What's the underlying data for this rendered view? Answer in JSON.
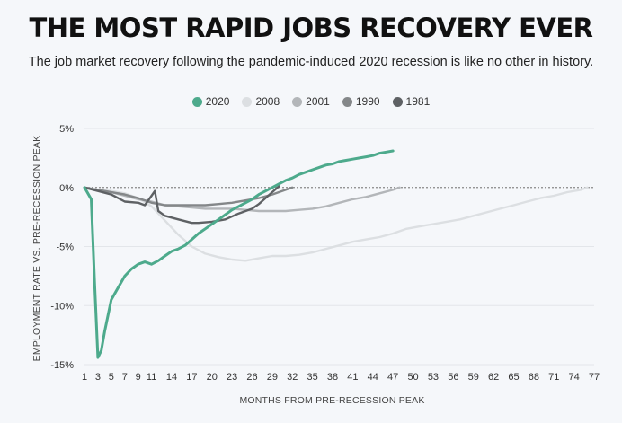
{
  "header": {
    "title": "THE MOST RAPID JOBS RECOVERY EVER",
    "subtitle": "The job market recovery following the pandemic-induced 2020 recession is like no other in history."
  },
  "chart_data": {
    "type": "line",
    "title": "THE MOST RAPID JOBS RECOVERY EVER",
    "subtitle": "The job market recovery following the pandemic-induced 2020 recession is like no other in history.",
    "xlabel": "MONTHS FROM PRE-RECESSION PEAK",
    "ylabel": "EMPLOYMENT RATE VS. PRE-RECESSION PEAK",
    "xlim": [
      1,
      77
    ],
    "ylim": [
      -15,
      5
    ],
    "x_ticks": [
      1,
      3,
      5,
      7,
      9,
      11,
      14,
      17,
      20,
      23,
      26,
      29,
      32,
      35,
      38,
      41,
      44,
      47,
      50,
      53,
      56,
      59,
      62,
      65,
      68,
      71,
      74,
      77
    ],
    "y_ticks": [
      5,
      0,
      -5,
      -10,
      -15
    ],
    "y_tick_labels": [
      "5%",
      "0%",
      "-5%",
      "-10%",
      "-15%"
    ],
    "legend_position": "top-center",
    "series": [
      {
        "name": "2020",
        "color": "#4daa8c",
        "x": [
          1,
          2,
          2.5,
          3,
          3.5,
          4,
          5,
          6,
          7,
          8,
          9,
          10,
          11,
          12,
          13,
          14,
          15,
          16,
          17,
          18,
          19,
          20,
          21,
          22,
          23,
          24,
          25,
          26,
          27,
          28,
          29,
          30,
          31,
          32,
          33,
          34,
          35,
          36,
          37,
          38,
          39,
          40,
          41,
          42,
          43,
          44,
          45,
          46,
          47
        ],
        "values": [
          0,
          -1,
          -8,
          -14.4,
          -13.8,
          -12.2,
          -9.5,
          -8.5,
          -7.5,
          -6.9,
          -6.5,
          -6.3,
          -6.5,
          -6.2,
          -5.8,
          -5.4,
          -5.2,
          -4.9,
          -4.4,
          -3.9,
          -3.5,
          -3.1,
          -2.7,
          -2.3,
          -1.9,
          -1.6,
          -1.3,
          -1.0,
          -0.6,
          -0.3,
          0,
          0.3,
          0.6,
          0.8,
          1.1,
          1.3,
          1.5,
          1.7,
          1.9,
          2.0,
          2.2,
          2.3,
          2.4,
          2.5,
          2.6,
          2.7,
          2.9,
          3.0,
          3.1
        ]
      },
      {
        "name": "2008",
        "color": "#dcdfe2",
        "x": [
          1,
          3,
          5,
          7,
          9,
          11,
          13,
          15,
          17,
          19,
          21,
          23,
          25,
          27,
          29,
          31,
          33,
          35,
          37,
          39,
          41,
          43,
          45,
          47,
          49,
          51,
          53,
          55,
          57,
          59,
          61,
          63,
          65,
          67,
          69,
          71,
          73,
          75,
          76
        ],
        "values": [
          0,
          -0.2,
          -0.3,
          -0.5,
          -0.9,
          -1.6,
          -2.8,
          -4.0,
          -5.0,
          -5.6,
          -5.9,
          -6.1,
          -6.2,
          -6.0,
          -5.8,
          -5.8,
          -5.7,
          -5.5,
          -5.2,
          -4.9,
          -4.6,
          -4.4,
          -4.2,
          -3.9,
          -3.5,
          -3.3,
          -3.1,
          -2.9,
          -2.7,
          -2.4,
          -2.1,
          -1.8,
          -1.5,
          -1.2,
          -0.9,
          -0.7,
          -0.4,
          -0.2,
          0
        ]
      },
      {
        "name": "2001",
        "color": "#b3b6b9",
        "x": [
          1,
          3,
          5,
          7,
          9,
          11,
          13,
          15,
          17,
          19,
          21,
          23,
          25,
          27,
          29,
          31,
          33,
          35,
          37,
          39,
          41,
          43,
          45,
          47,
          48
        ],
        "values": [
          0,
          -0.2,
          -0.4,
          -0.7,
          -1.0,
          -1.2,
          -1.5,
          -1.6,
          -1.7,
          -1.8,
          -1.8,
          -1.8,
          -1.9,
          -2.0,
          -2.0,
          -2.0,
          -1.9,
          -1.8,
          -1.6,
          -1.3,
          -1.0,
          -0.8,
          -0.5,
          -0.2,
          0
        ]
      },
      {
        "name": "1990",
        "color": "#848789",
        "x": [
          1,
          3,
          5,
          7,
          9,
          11,
          13,
          15,
          17,
          19,
          21,
          23,
          25,
          27,
          29,
          31,
          32
        ],
        "values": [
          0,
          -0.2,
          -0.4,
          -0.6,
          -0.9,
          -1.3,
          -1.5,
          -1.5,
          -1.5,
          -1.5,
          -1.4,
          -1.3,
          -1.1,
          -0.9,
          -0.6,
          -0.2,
          0
        ]
      },
      {
        "name": "1981",
        "color": "#5e6164",
        "x": [
          1,
          3,
          5,
          7,
          9,
          10,
          11,
          11.5,
          12,
          13,
          15,
          17,
          18,
          20,
          22,
          24,
          26,
          27,
          28,
          29,
          30
        ],
        "values": [
          0,
          -0.3,
          -0.6,
          -1.2,
          -1.3,
          -1.5,
          -0.7,
          -0.3,
          -2.0,
          -2.4,
          -2.7,
          -3.0,
          -3.0,
          -2.9,
          -2.7,
          -2.2,
          -1.8,
          -1.4,
          -0.9,
          -0.4,
          0.1
        ]
      }
    ]
  }
}
